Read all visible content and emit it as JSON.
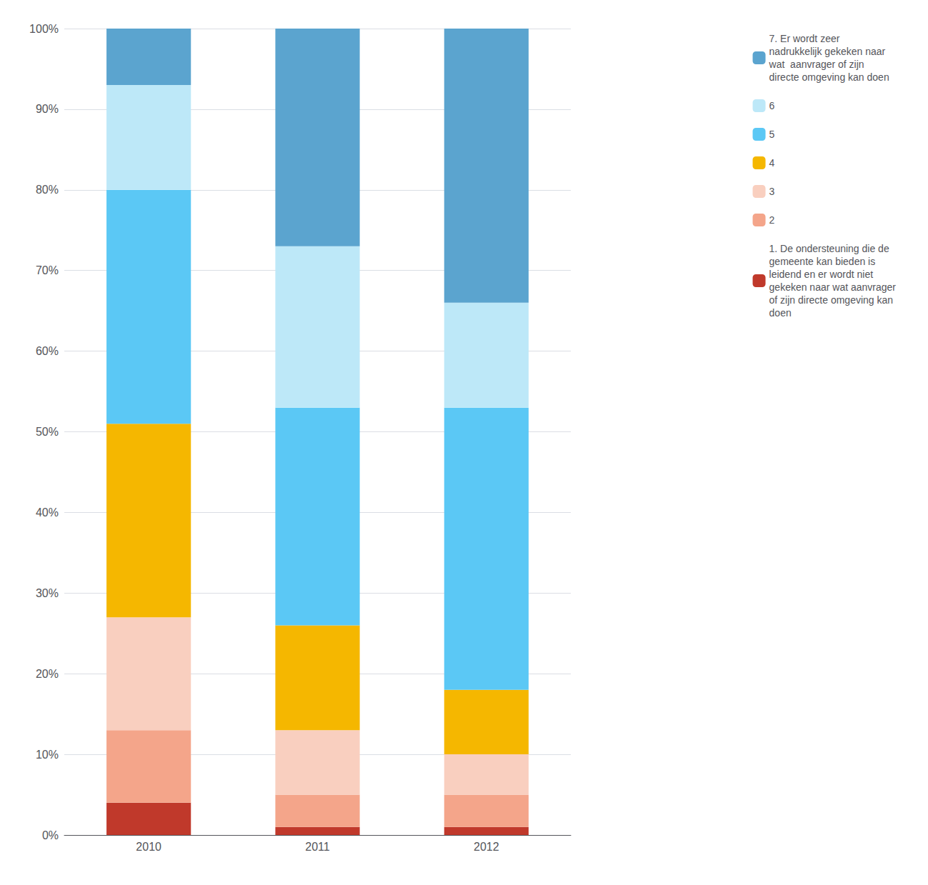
{
  "chart_data": {
    "type": "bar",
    "stacked": true,
    "categories": [
      "2010",
      "2011",
      "2012"
    ],
    "series": [
      {
        "name": "1. De ondersteuning die de gemeente kan bieden is leidend en er wordt niet gekeken naar wat aanvrager of zijn directe omgeving kan doen",
        "color": "#C0392B",
        "values": [
          4,
          1,
          1
        ]
      },
      {
        "name": "2",
        "color": "#F4A58A",
        "values": [
          9,
          4,
          4
        ]
      },
      {
        "name": "3",
        "color": "#F9CFBF",
        "values": [
          14,
          8,
          5
        ]
      },
      {
        "name": "4",
        "color": "#F5B700",
        "values": [
          24,
          13,
          8
        ]
      },
      {
        "name": "5",
        "color": "#5BC8F5",
        "values": [
          29,
          27,
          35
        ]
      },
      {
        "name": "6",
        "color": "#BDE8F8",
        "values": [
          13,
          20,
          13
        ]
      },
      {
        "name": "7. Er wordt zeer nadrukkelijk gekeken naar wat  aanvrager of zijn directe omgeving kan doen",
        "color": "#5BA4CF",
        "values": [
          7,
          27,
          34
        ]
      }
    ],
    "ylim": [
      0,
      100
    ],
    "yticks": [
      {
        "value": 0,
        "label": "0%"
      },
      {
        "value": 10,
        "label": "10%"
      },
      {
        "value": 20,
        "label": "20%"
      },
      {
        "value": 30,
        "label": "30%"
      },
      {
        "value": 40,
        "label": "40%"
      },
      {
        "value": 50,
        "label": "50%"
      },
      {
        "value": 60,
        "label": "60%"
      },
      {
        "value": 70,
        "label": "70%"
      },
      {
        "value": 80,
        "label": "80%"
      },
      {
        "value": 90,
        "label": "90%"
      },
      {
        "value": 100,
        "label": "100%"
      }
    ],
    "grid": true,
    "legend": "right"
  }
}
